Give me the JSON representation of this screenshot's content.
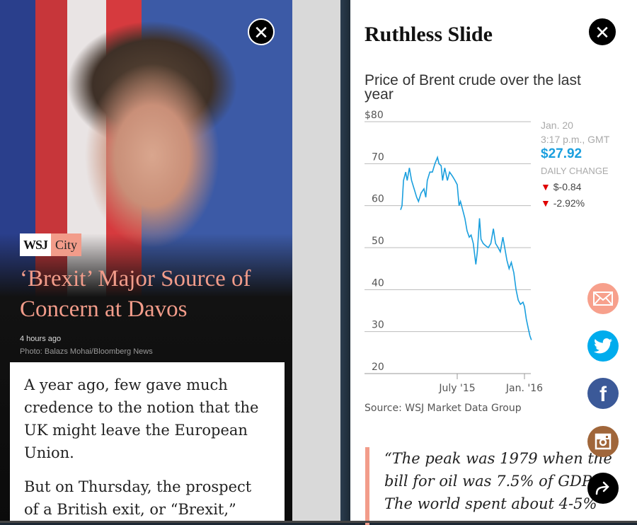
{
  "left_panel": {
    "brand": {
      "wsj": "WSJ",
      "section": "City"
    },
    "headline": "‘Brexit’ Major Source of Concern at Davos",
    "timestamp": "4 hours ago",
    "photo_credit": "Photo: Balazs Mohai/Bloomberg News",
    "paragraphs": [
      "A year ago, few gave much credence to the notion that the UK might leave the European Union.",
      "But on Thursday, the prospect of a British exit, or “Brexit,”"
    ],
    "close_icon": "close-icon"
  },
  "right_panel": {
    "title": "Ruthless Slide",
    "close_icon": "close-icon",
    "quote": [
      "“The peak was 1979 when the",
      "bill for oil was 7.5% of GDP.",
      "The world spent about 4-5%"
    ],
    "share": [
      {
        "icon": "mail-icon",
        "color": "#f7a08c"
      },
      {
        "icon": "twitter-icon",
        "color": "#00aced"
      },
      {
        "icon": "facebook-icon",
        "color": "#3b5998"
      },
      {
        "icon": "instagram-icon",
        "color": "#a0663a"
      },
      {
        "icon": "share-arrow-icon",
        "color": "#000000"
      }
    ]
  },
  "chart_data": {
    "type": "line",
    "title": "Price of Brent crude over the last year",
    "source": "Source: WSJ Market Data Group",
    "ylim": [
      20,
      80
    ],
    "yticks": [
      "$80",
      "70",
      "60",
      "50",
      "40",
      "30",
      "20"
    ],
    "xticks": [
      {
        "label": "July '15",
        "date": "2015-07-01"
      },
      {
        "label": "Jan. '16",
        "date": "2016-01-01"
      }
    ],
    "grid": true,
    "line_color": "#1a9fde",
    "series": [
      {
        "points": [
          [
            "2015-01-27",
            59
          ],
          [
            "2015-01-31",
            60
          ],
          [
            "2015-02-04",
            66
          ],
          [
            "2015-02-10",
            68
          ],
          [
            "2015-02-14",
            66
          ],
          [
            "2015-02-20",
            69
          ],
          [
            "2015-02-26",
            66
          ],
          [
            "2015-03-05",
            64
          ],
          [
            "2015-03-12",
            62
          ],
          [
            "2015-03-17",
            61
          ],
          [
            "2015-03-24",
            63
          ],
          [
            "2015-04-01",
            64
          ],
          [
            "2015-04-06",
            62
          ],
          [
            "2015-04-10",
            66
          ],
          [
            "2015-04-17",
            68
          ],
          [
            "2015-04-24",
            68
          ],
          [
            "2015-05-01",
            70
          ],
          [
            "2015-05-08",
            71.5
          ],
          [
            "2015-05-12",
            70
          ],
          [
            "2015-05-18",
            69.5
          ],
          [
            "2015-05-22",
            66
          ],
          [
            "2015-05-28",
            69
          ],
          [
            "2015-06-04",
            66
          ],
          [
            "2015-06-10",
            68
          ],
          [
            "2015-06-18",
            67
          ],
          [
            "2015-06-25",
            66
          ],
          [
            "2015-07-01",
            65
          ],
          [
            "2015-07-06",
            60
          ],
          [
            "2015-07-10",
            61
          ],
          [
            "2015-07-16",
            59
          ],
          [
            "2015-07-22",
            57
          ],
          [
            "2015-07-28",
            54
          ],
          [
            "2015-08-03",
            52.5
          ],
          [
            "2015-08-08",
            53
          ],
          [
            "2015-08-14",
            51
          ],
          [
            "2015-08-21",
            46
          ],
          [
            "2015-08-25",
            49
          ],
          [
            "2015-08-31",
            57
          ],
          [
            "2015-09-04",
            52
          ],
          [
            "2015-09-10",
            51
          ],
          [
            "2015-09-16",
            50.5
          ],
          [
            "2015-09-24",
            50
          ],
          [
            "2015-10-01",
            51
          ],
          [
            "2015-10-08",
            54.5
          ],
          [
            "2015-10-14",
            51
          ],
          [
            "2015-10-21",
            50
          ],
          [
            "2015-10-27",
            49
          ],
          [
            "2015-11-03",
            52.5
          ],
          [
            "2015-11-08",
            50
          ],
          [
            "2015-11-14",
            47
          ],
          [
            "2015-11-20",
            45
          ],
          [
            "2015-11-26",
            46.5
          ],
          [
            "2015-12-03",
            44
          ],
          [
            "2015-12-09",
            40
          ],
          [
            "2015-12-15",
            37.5
          ],
          [
            "2015-12-21",
            36.5
          ],
          [
            "2015-12-28",
            37
          ],
          [
            "2016-01-01",
            36
          ],
          [
            "2016-01-06",
            33
          ],
          [
            "2016-01-12",
            30.5
          ],
          [
            "2016-01-16",
            29
          ],
          [
            "2016-01-20",
            28
          ]
        ]
      }
    ],
    "callout": {
      "date": "Jan. 20",
      "time": "3:17 p.m., GMT",
      "price": "$27.92",
      "price_color": "#1a9fde",
      "change_label": "DAILY CHANGE",
      "change_abs": "$-0.84",
      "change_pct": "-2.92%",
      "down_color": "#e00000"
    }
  }
}
